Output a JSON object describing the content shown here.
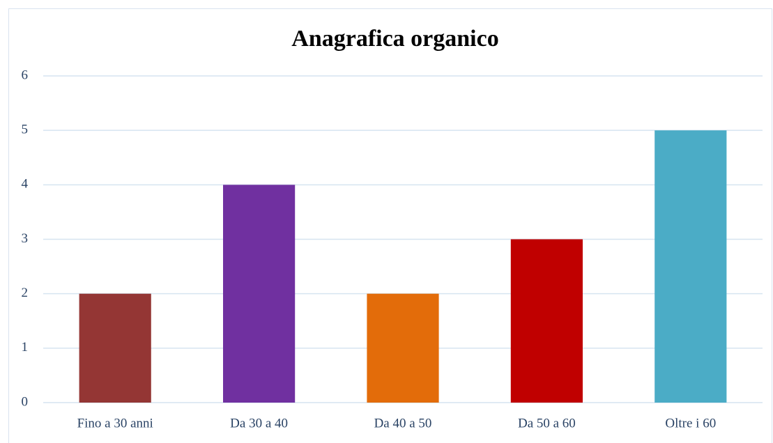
{
  "chart_data": {
    "type": "bar",
    "title": "Anagrafica organico",
    "categories": [
      "Fino a 30 anni",
      "Da 30 a 40",
      "Da 40 a 50",
      "Da 50 a 60",
      "Oltre i 60"
    ],
    "values": [
      2,
      4,
      2,
      3,
      5
    ],
    "colors": [
      "#943634",
      "#7030a0",
      "#e36c0a",
      "#c00000",
      "#4bacc6"
    ],
    "ylim": [
      0,
      6
    ],
    "yticks": [
      0,
      1,
      2,
      3,
      4,
      5,
      6
    ],
    "grid": true
  }
}
